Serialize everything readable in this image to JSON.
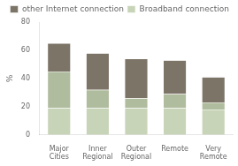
{
  "chart_data": {
    "type": "bar",
    "stacked": true,
    "categories": [
      "Major\nCities",
      "Inner\nRegional",
      "Outer\nRegional",
      "Remote",
      "Very\nRemote"
    ],
    "series": [
      {
        "name": "Broadband connection",
        "color": "#c8d4b8",
        "values": [
          19,
          19,
          19,
          19,
          18
        ]
      },
      {
        "color": "#b0bc9e",
        "values": [
          26,
          13,
          7,
          10,
          5
        ]
      },
      {
        "name": "other Internet connection",
        "color": "#7d7468",
        "values": [
          20,
          26,
          28,
          24,
          18
        ]
      }
    ],
    "ylabel": "%",
    "ylim": [
      0,
      80
    ],
    "yticks": [
      0,
      20,
      40,
      60,
      80
    ],
    "grid": false,
    "legend": "upper right"
  }
}
